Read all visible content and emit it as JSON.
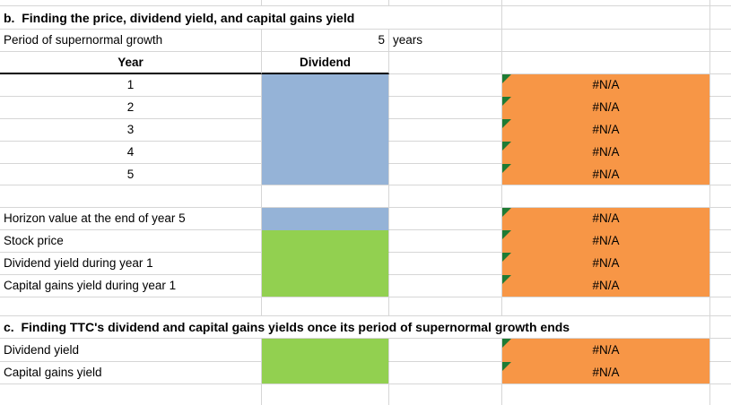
{
  "colors": {
    "input_blue": "#95B3D7",
    "input_green": "#92D050",
    "output_orange": "#F79646",
    "error_indicator_green": "#1E7B34",
    "grid_line": "#D6D6D6",
    "header_border": "#000000"
  },
  "b": {
    "heading": "b.  Finding the price, dividend yield, and capital gains yield",
    "period": {
      "label": "Period of supernormal growth",
      "value": "5",
      "unit": "years"
    },
    "table": {
      "year_header": "Year",
      "dividend_header": "Dividend",
      "rows": [
        {
          "year": "1",
          "result": "#N/A"
        },
        {
          "year": "2",
          "result": "#N/A"
        },
        {
          "year": "3",
          "result": "#N/A"
        },
        {
          "year": "4",
          "result": "#N/A"
        },
        {
          "year": "5",
          "result": "#N/A"
        }
      ]
    },
    "summary": [
      {
        "label": "Horizon value at the end of year 5",
        "result": "#N/A"
      },
      {
        "label": "Stock price",
        "result": "#N/A"
      },
      {
        "label": "Dividend yield during year 1",
        "result": "#N/A"
      },
      {
        "label": "Capital gains yield during year 1",
        "result": "#N/A"
      }
    ]
  },
  "c": {
    "heading": "c.  Finding TTC's dividend and capital gains yields once its period of supernormal growth ends",
    "rows": [
      {
        "label": "Dividend yield",
        "result": "#N/A"
      },
      {
        "label": "Capital gains yield",
        "result": "#N/A"
      }
    ]
  }
}
